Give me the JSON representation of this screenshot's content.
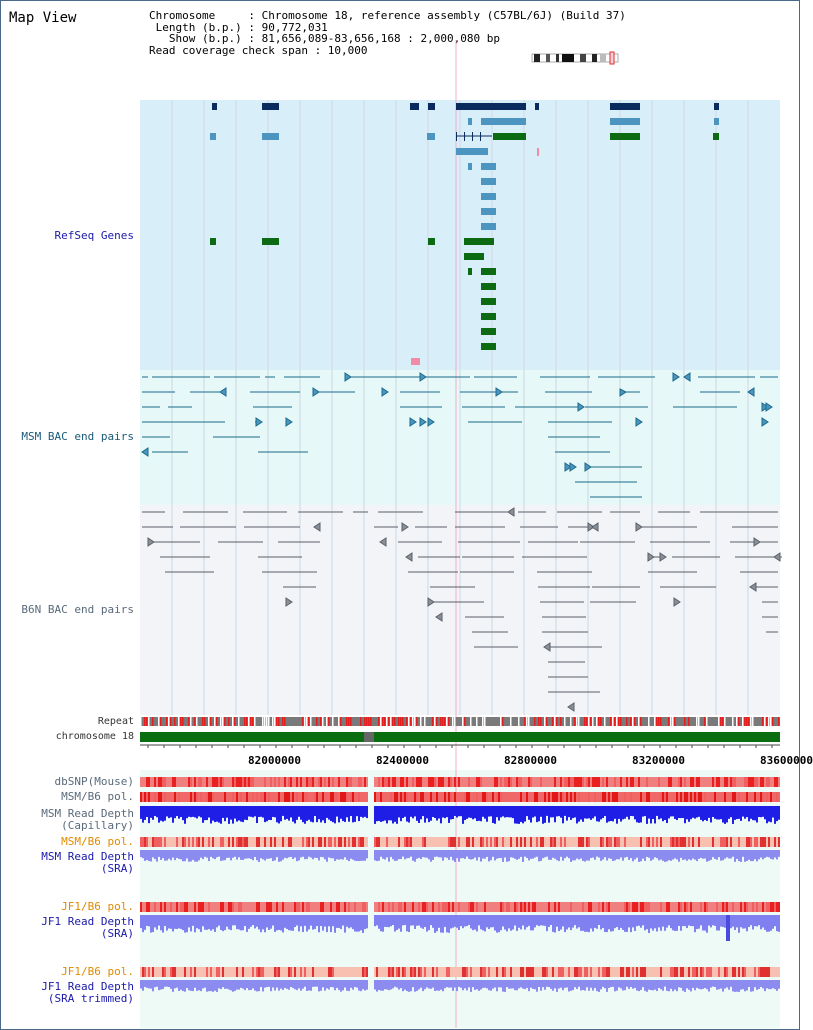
{
  "header": {
    "title": "Map View",
    "info_lines": [
      "Chromosome     : Chromosome 18, reference assembly (C57BL/6J) (Build 37)",
      " Length (b.p.) : 90,772,031",
      "   Show (b.p.) : 81,656,089-83,656,168 : 2,000,080 bp",
      "Read coverage check span : 10,000"
    ]
  },
  "tracks": {
    "refseq": "RefSeq Genes",
    "msm_bac": "MSM BAC end pairs",
    "b6n_bac": "B6N BAC end pairs",
    "repeat": "Repeat",
    "chromosome": "chromosome 18",
    "dbsnp": "dbSNP(Mouse)",
    "msm_b6_pol_1": "MSM/B6 pol.",
    "msm_depth_cap": "MSM Read Depth\n(Capillary)",
    "msm_b6_pol_2": "MSM/B6 pol.",
    "msm_depth_sra": "MSM Read Depth\n(SRA)",
    "jf1_b6_pol_1": "JF1/B6 pol.",
    "jf1_depth_sra": "JF1 Read Depth\n(SRA)",
    "jf1_b6_pol_2": "JF1/B6 pol.",
    "jf1_depth_trim": "JF1 Read Depth\n(SRA trimmed)"
  },
  "axis": {
    "ticks": [
      "82000000",
      "82400000",
      "82800000",
      "83200000",
      "83600000"
    ]
  },
  "colors": {
    "refseq_bg": "#d8eef8",
    "msm_bg": "#e6f8f8",
    "b6n_bg": "#f2f4f8",
    "gene_dark": "#0b2a5e",
    "gene_mid": "#4c95c0",
    "gene_green": "#0b6a12",
    "chrom_green": "#0a6e10",
    "pol_red": "#e83838",
    "depth_blue": "#1e1ee6",
    "depth_light": "#8080f0"
  }
}
